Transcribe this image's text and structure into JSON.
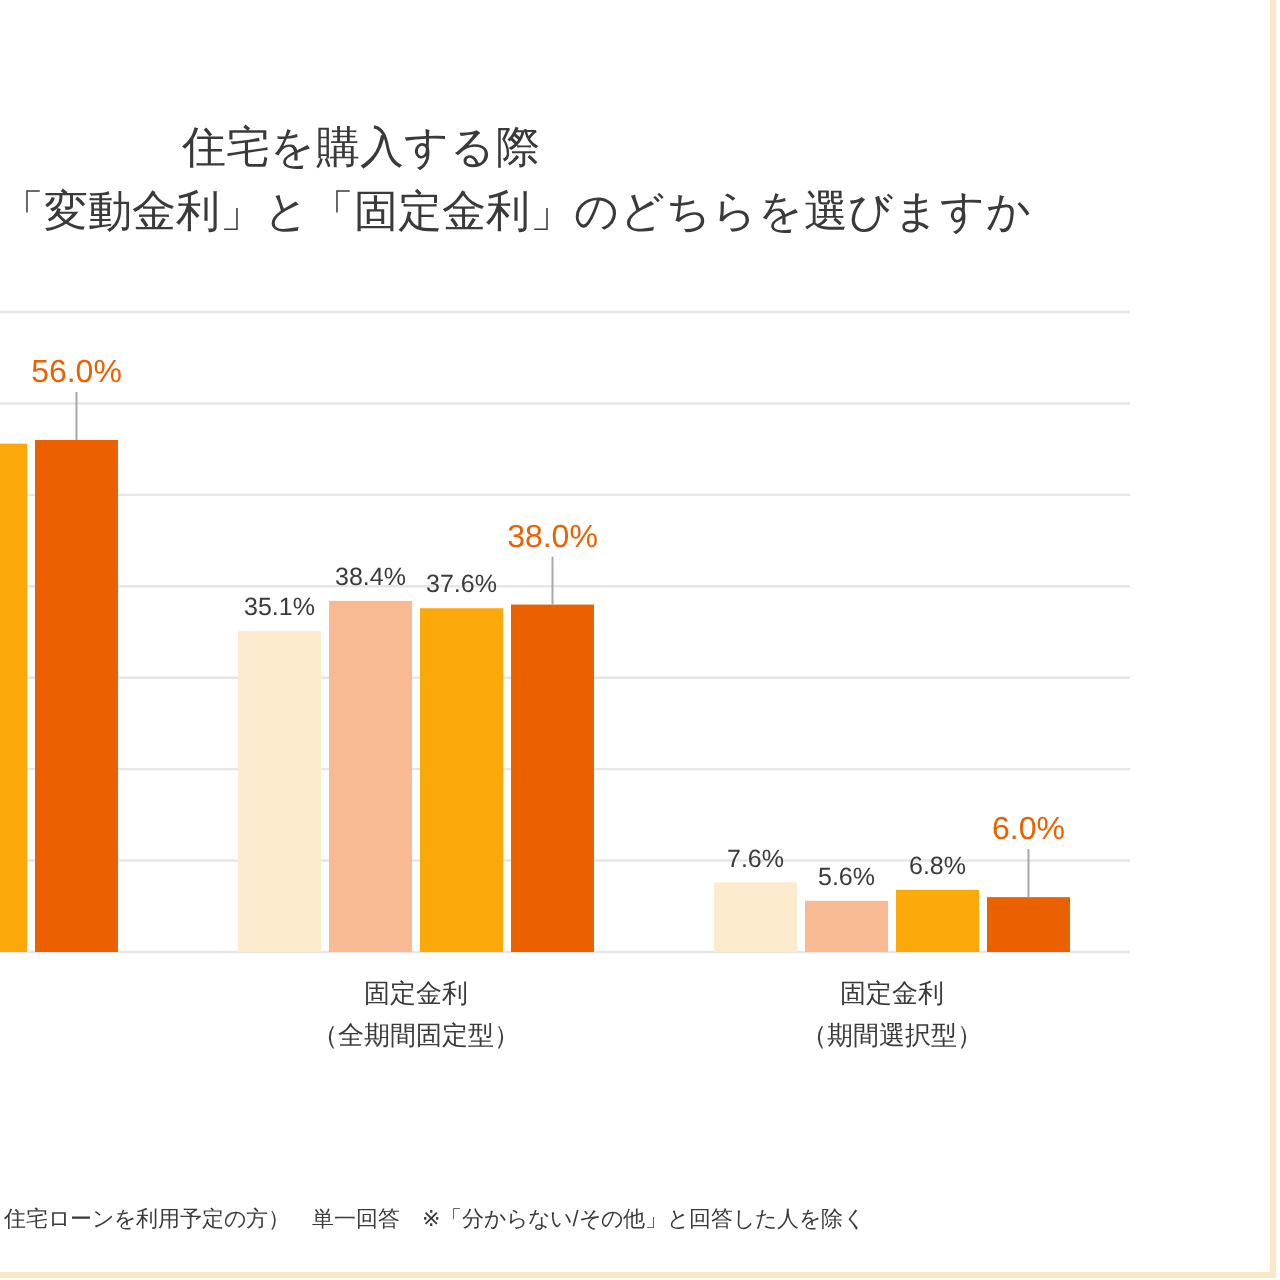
{
  "chart_data": {
    "type": "bar",
    "title": "住宅を購入する際",
    "subtitle": "「変動金利」と「固定金利」のどちらを選びますか",
    "categories": [
      null,
      "固定金利（全期間固定型）",
      "固定金利（期間選択型）"
    ],
    "series": [
      {
        "color": "#FDEBCD",
        "values": [
          null,
          35.1,
          7.6
        ],
        "value_labels": [
          null,
          "35.1%",
          "7.6%"
        ]
      },
      {
        "color": "#F8BA92",
        "values": [
          null,
          38.4,
          5.6
        ],
        "value_labels": [
          null,
          "38.4%",
          "5.6%"
        ]
      },
      {
        "color": "#FBA80A",
        "values": [
          55.6,
          37.6,
          6.8
        ],
        "value_labels": [
          null,
          "37.6%",
          "6.8%"
        ]
      },
      {
        "color": "#EB6100",
        "values": [
          56.0,
          38.0,
          6.0
        ],
        "value_labels": [
          "56.0%",
          "38.0%",
          "6.0%"
        ]
      }
    ],
    "ylim": [
      0,
      70
    ],
    "yticks": [
      {
        "value": 0,
        "label": null
      },
      {
        "value": 10,
        "label": null
      },
      {
        "value": 20,
        "label": null
      },
      {
        "value": 30,
        "label": null
      },
      {
        "value": 40,
        "label": null
      },
      {
        "value": 50,
        "label": null
      },
      {
        "value": 60,
        "label": null
      },
      {
        "value": 70,
        "label": null
      }
    ],
    "grid": "y",
    "annotations": [
      "住宅ローンを利用予定の方）　単一回答　※「分からない/その他」と回答した人を除く"
    ]
  }
}
